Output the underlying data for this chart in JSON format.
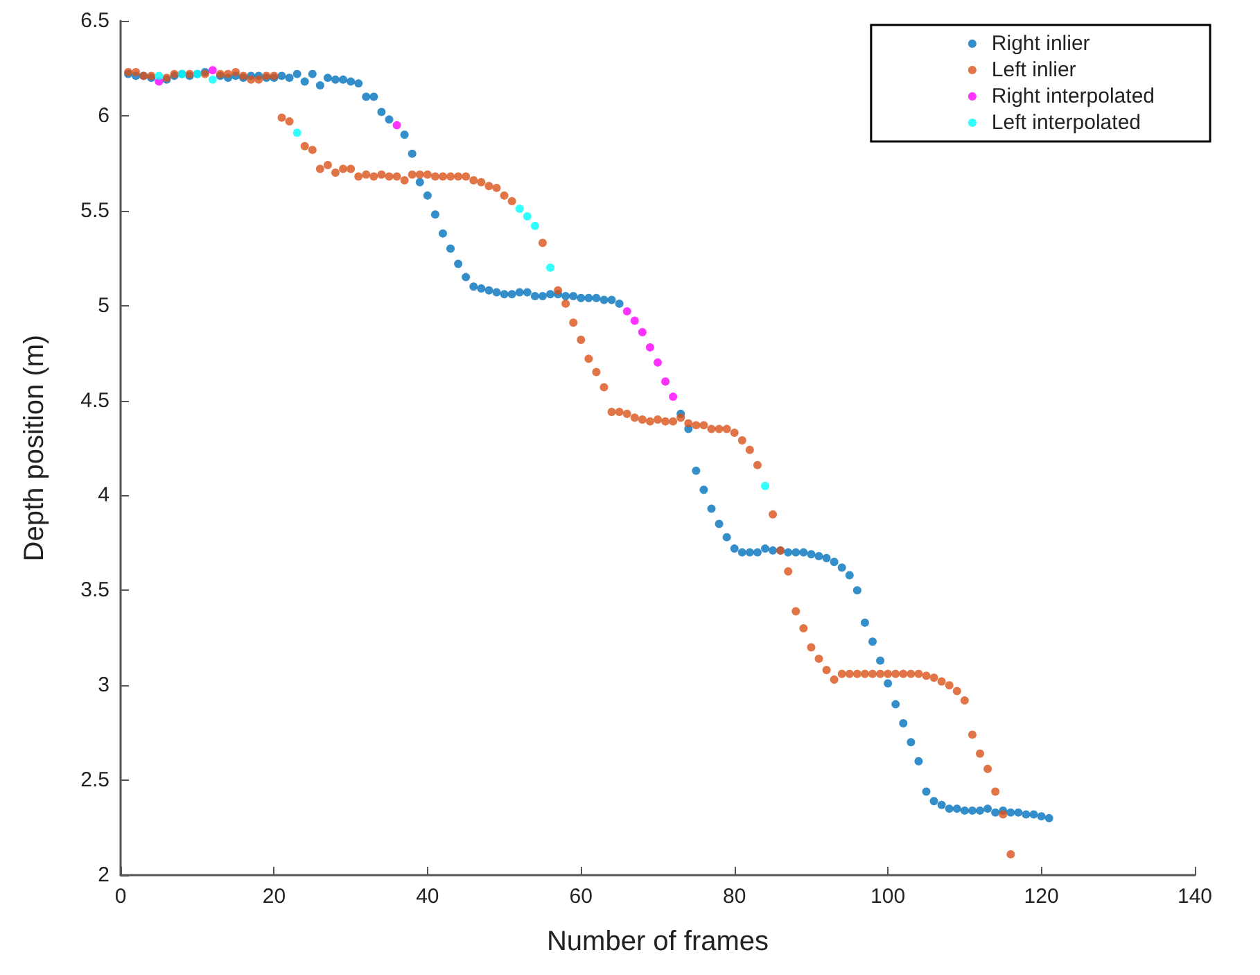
{
  "chart_data": {
    "type": "scatter",
    "xlabel": "Number of frames",
    "ylabel": "Depth position (m)",
    "xlim": [
      0,
      140
    ],
    "xticks": [
      0,
      20,
      40,
      60,
      80,
      100,
      120,
      140
    ],
    "ylim": [
      2,
      6.5
    ],
    "yticks": [
      2,
      2.5,
      3,
      3.5,
      4,
      4.5,
      5,
      5.5,
      6,
      6.5
    ],
    "grid": false,
    "legend": "top right",
    "marker": "circle",
    "series": [
      {
        "name": "Right inlier",
        "color": "#0072bd",
        "x": [
          1,
          2,
          3,
          4,
          6,
          7,
          8,
          9,
          10,
          11,
          13,
          14,
          15,
          16,
          17,
          18,
          19,
          20,
          21,
          22,
          23,
          24,
          25,
          26,
          27,
          28,
          29,
          30,
          31,
          32,
          33,
          34,
          35,
          37,
          38,
          39,
          40,
          41,
          42,
          43,
          44,
          45,
          46,
          47,
          48,
          49,
          50,
          51,
          52,
          53,
          54,
          55,
          56,
          57,
          58,
          59,
          60,
          61,
          62,
          63,
          64,
          65,
          73,
          74,
          75,
          76,
          77,
          78,
          79,
          80,
          81,
          82,
          83,
          84,
          85,
          86,
          87,
          88,
          89,
          90,
          91,
          92,
          93,
          94,
          95,
          96,
          97,
          98,
          99,
          100,
          101,
          102,
          103,
          104,
          105,
          106,
          107,
          108,
          109,
          110,
          111,
          112,
          113,
          114,
          115,
          116,
          117,
          118,
          119,
          120,
          121
        ],
        "values": [
          6.22,
          6.21,
          6.21,
          6.2,
          6.19,
          6.21,
          6.22,
          6.21,
          6.22,
          6.23,
          6.21,
          6.2,
          6.21,
          6.2,
          6.21,
          6.21,
          6.2,
          6.2,
          6.21,
          6.2,
          6.22,
          6.18,
          6.22,
          6.16,
          6.2,
          6.19,
          6.19,
          6.18,
          6.17,
          6.1,
          6.1,
          6.02,
          5.98,
          5.9,
          5.8,
          5.65,
          5.58,
          5.48,
          5.38,
          5.3,
          5.22,
          5.15,
          5.1,
          5.09,
          5.08,
          5.07,
          5.06,
          5.06,
          5.07,
          5.07,
          5.05,
          5.05,
          5.06,
          5.06,
          5.05,
          5.05,
          5.04,
          5.04,
          5.04,
          5.03,
          5.03,
          5.01,
          4.43,
          4.35,
          4.13,
          4.03,
          3.93,
          3.85,
          3.78,
          3.72,
          3.7,
          3.7,
          3.7,
          3.72,
          3.71,
          3.71,
          3.7,
          3.7,
          3.7,
          3.69,
          3.68,
          3.67,
          3.65,
          3.62,
          3.58,
          3.5,
          3.33,
          3.23,
          3.13,
          3.01,
          2.9,
          2.8,
          2.7,
          2.6,
          2.44,
          2.39,
          2.37,
          2.35,
          2.35,
          2.34,
          2.34,
          2.34,
          2.35,
          2.33,
          2.34,
          2.33,
          2.33,
          2.32,
          2.32,
          2.31,
          2.3
        ]
      },
      {
        "name": "Left inlier",
        "color": "#d95319",
        "x": [
          1,
          2,
          3,
          4,
          6,
          7,
          9,
          11,
          13,
          14,
          15,
          16,
          17,
          18,
          19,
          20,
          21,
          22,
          24,
          25,
          26,
          27,
          28,
          29,
          30,
          31,
          32,
          33,
          34,
          35,
          36,
          37,
          38,
          39,
          40,
          41,
          42,
          43,
          44,
          45,
          46,
          47,
          48,
          49,
          50,
          51,
          55,
          57,
          58,
          59,
          60,
          61,
          62,
          63,
          64,
          65,
          66,
          67,
          68,
          69,
          70,
          71,
          72,
          73,
          74,
          75,
          76,
          77,
          78,
          79,
          80,
          81,
          82,
          83,
          85,
          86,
          87,
          88,
          89,
          90,
          91,
          92,
          93,
          94,
          95,
          96,
          97,
          98,
          99,
          100,
          101,
          102,
          103,
          104,
          105,
          106,
          107,
          108,
          109,
          110,
          111,
          112,
          113,
          114,
          115,
          116
        ],
        "values": [
          6.23,
          6.23,
          6.21,
          6.21,
          6.2,
          6.22,
          6.22,
          6.22,
          6.22,
          6.22,
          6.23,
          6.21,
          6.19,
          6.19,
          6.21,
          6.21,
          5.99,
          5.97,
          5.84,
          5.82,
          5.72,
          5.74,
          5.7,
          5.72,
          5.72,
          5.68,
          5.69,
          5.68,
          5.69,
          5.68,
          5.68,
          5.66,
          5.69,
          5.69,
          5.69,
          5.68,
          5.68,
          5.68,
          5.68,
          5.68,
          5.66,
          5.65,
          5.63,
          5.62,
          5.58,
          5.55,
          5.33,
          5.08,
          5.01,
          4.91,
          4.82,
          4.72,
          4.65,
          4.57,
          4.44,
          4.44,
          4.43,
          4.41,
          4.4,
          4.39,
          4.4,
          4.39,
          4.39,
          4.41,
          4.38,
          4.37,
          4.37,
          4.35,
          4.35,
          4.35,
          4.33,
          4.29,
          4.24,
          4.16,
          3.9,
          3.71,
          3.6,
          3.39,
          3.3,
          3.2,
          3.14,
          3.08,
          3.03,
          3.06,
          3.06,
          3.06,
          3.06,
          3.06,
          3.06,
          3.06,
          3.06,
          3.06,
          3.06,
          3.06,
          3.05,
          3.04,
          3.02,
          3.0,
          2.97,
          2.92,
          2.74,
          2.64,
          2.56,
          2.44,
          2.32,
          2.11
        ]
      },
      {
        "name": "Right interpolated",
        "color": "#ff00ff",
        "x": [
          5,
          12,
          36,
          66,
          67,
          68,
          69,
          70,
          71,
          72
        ],
        "values": [
          6.18,
          6.24,
          5.95,
          4.97,
          4.92,
          4.86,
          4.78,
          4.7,
          4.6,
          4.52
        ]
      },
      {
        "name": "Left interpolated",
        "color": "#00ffff",
        "x": [
          5,
          8,
          10,
          12,
          23,
          52,
          53,
          54,
          56,
          84
        ],
        "values": [
          6.21,
          6.22,
          6.22,
          6.19,
          5.91,
          5.51,
          5.47,
          5.42,
          5.2,
          4.05
        ]
      }
    ]
  }
}
